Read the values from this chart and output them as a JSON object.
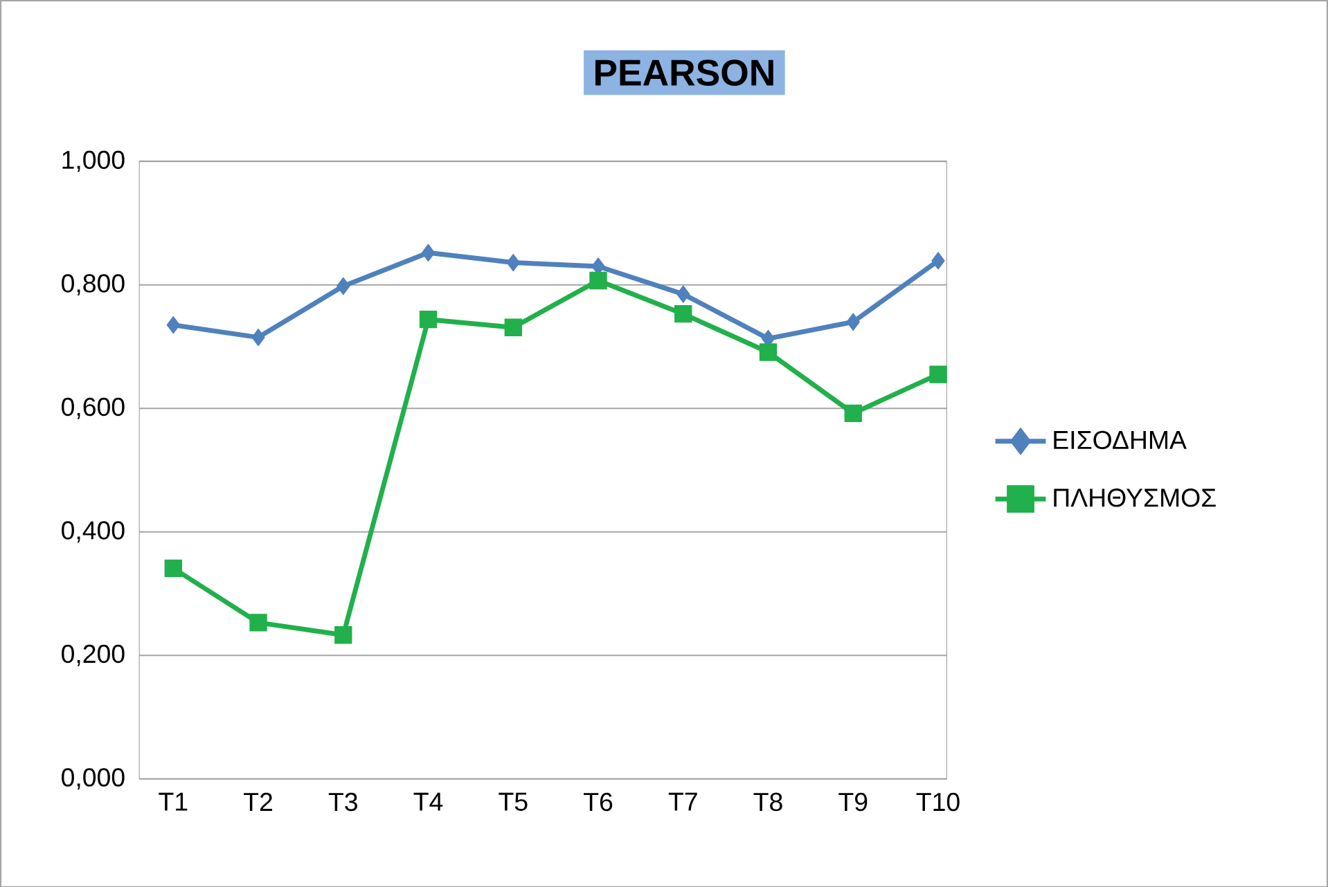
{
  "chart_data": {
    "type": "line",
    "title": "PEARSON",
    "categories": [
      "T1",
      "T2",
      "T3",
      "T4",
      "T5",
      "T6",
      "T7",
      "T8",
      "T9",
      "T10"
    ],
    "series": [
      {
        "name": "ΕΙΣΟΔΗΜΑ",
        "color": "#4f81bd",
        "marker": "diamond",
        "values": [
          0.735,
          0.715,
          0.798,
          0.852,
          0.836,
          0.83,
          0.785,
          0.713,
          0.74,
          0.839
        ]
      },
      {
        "name": "ΠΛΗΘΥΣΜΟΣ",
        "color": "#21b04b",
        "marker": "square",
        "values": [
          0.341,
          0.253,
          0.233,
          0.744,
          0.731,
          0.807,
          0.753,
          0.691,
          0.592,
          0.655
        ]
      }
    ],
    "ylim": [
      0,
      1
    ],
    "yticks": [
      {
        "value": 0,
        "label": "0,000"
      },
      {
        "value": 0.2,
        "label": "0,200"
      },
      {
        "value": 0.4,
        "label": "0,400"
      },
      {
        "value": 0.6,
        "label": "0,600"
      },
      {
        "value": 0.8,
        "label": "0,800"
      },
      {
        "value": 1,
        "label": "1,000"
      }
    ],
    "grid": "y",
    "legend": "right"
  }
}
